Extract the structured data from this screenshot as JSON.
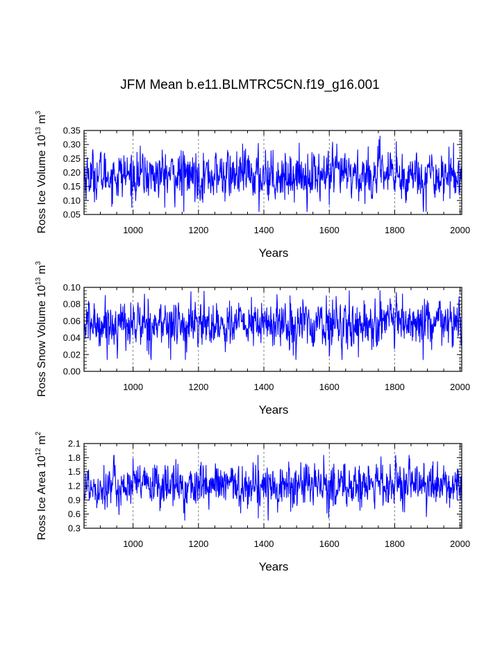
{
  "title": "JFM Mean b.e11.BLMTRC5CN.f19_g16.001",
  "colors": {
    "series": "#0000ff",
    "axes": "#000000",
    "refline": "#666666"
  },
  "chart_data": [
    {
      "type": "line",
      "name": "ice-volume",
      "ylabel_parts": {
        "main": "Ross Ice Volume 10",
        "exp1": "13",
        "unit": " m",
        "exp2": "3"
      },
      "xlabel": "Years",
      "xlim": [
        850,
        2005
      ],
      "ylim": [
        0.05,
        0.35
      ],
      "xticks": [
        "1000",
        "1200",
        "1400",
        "1600",
        "1800",
        "2000"
      ],
      "yticks": [
        "0.05",
        "0.10",
        "0.15",
        "0.20",
        "0.25",
        "0.30",
        "0.35"
      ],
      "reference_years": [
        1000,
        1200,
        1400,
        1600,
        1800,
        2000
      ],
      "series": {
        "name": "Ross Ice Volume",
        "start_year": 850,
        "end_year": 2005,
        "mean": 0.19,
        "min": 0.06,
        "max": 0.33,
        "approx_std": 0.04,
        "anchors": [
          [
            1155,
            0.06
          ],
          [
            1385,
            0.06
          ],
          [
            1600,
            0.085
          ],
          [
            1755,
            0.33
          ],
          [
            1805,
            0.31
          ],
          [
            1000,
            0.24
          ],
          [
            1405,
            0.28
          ]
        ]
      }
    },
    {
      "type": "line",
      "name": "snow-volume",
      "ylabel_parts": {
        "main": "Ross Snow Volume 10",
        "exp1": "13",
        "unit": " m",
        "exp2": "3"
      },
      "xlabel": "Years",
      "xlim": [
        850,
        2005
      ],
      "ylim": [
        0.0,
        0.1
      ],
      "xticks": [
        "1000",
        "1200",
        "1400",
        "1600",
        "1800",
        "2000"
      ],
      "yticks": [
        "0.00",
        "0.02",
        "0.04",
        "0.06",
        "0.08",
        "0.10"
      ],
      "reference_years": [
        1000,
        1200,
        1400,
        1600,
        1800,
        2000
      ],
      "series": {
        "name": "Ross Snow Volume",
        "start_year": 850,
        "end_year": 2005,
        "mean": 0.056,
        "min": 0.014,
        "max": 0.096,
        "approx_std": 0.013,
        "anchors": [
          [
            1115,
            0.014
          ],
          [
            1160,
            0.014
          ],
          [
            1600,
            0.018
          ],
          [
            1755,
            0.096
          ],
          [
            1805,
            0.094
          ],
          [
            1035,
            0.092
          ],
          [
            1480,
            0.09
          ]
        ]
      }
    },
    {
      "type": "line",
      "name": "ice-area",
      "ylabel_parts": {
        "main": "Ross Ice Area 10",
        "exp1": "12",
        "unit": " m",
        "exp2": "2"
      },
      "xlabel": "Years",
      "xlim": [
        850,
        2005
      ],
      "ylim": [
        0.3,
        2.1
      ],
      "xticks": [
        "1000",
        "1200",
        "1400",
        "1600",
        "1800",
        "2000"
      ],
      "yticks": [
        "0.3",
        "0.6",
        "0.9",
        "1.2",
        "1.5",
        "1.8",
        "2.1"
      ],
      "reference_years": [
        1000,
        1200,
        1400,
        1600,
        1800,
        2000
      ],
      "series": {
        "name": "Ross Ice Area",
        "start_year": 850,
        "end_year": 2005,
        "mean": 1.2,
        "min": 0.47,
        "max": 1.85,
        "approx_std": 0.22,
        "anchors": [
          [
            1158,
            0.47
          ],
          [
            1383,
            0.52
          ],
          [
            1598,
            0.52
          ],
          [
            1382,
            1.85
          ],
          [
            1758,
            1.82
          ],
          [
            1000,
            1.78
          ],
          [
            1805,
            1.68
          ]
        ]
      }
    }
  ]
}
